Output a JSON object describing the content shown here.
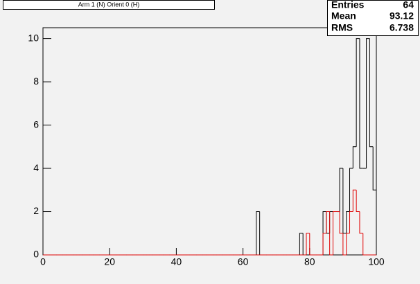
{
  "chart_data": {
    "type": "histogram",
    "title": "Arm 1 (N) Orient 0 (H)",
    "bins": [
      0,
      1,
      2,
      3,
      4,
      5,
      6,
      7,
      8,
      9,
      10,
      11,
      12,
      13,
      14,
      15,
      16,
      17,
      18,
      19,
      20,
      21,
      22,
      23,
      24,
      25,
      26,
      27,
      28,
      29,
      30,
      31,
      32,
      33,
      34,
      35,
      36,
      37,
      38,
      39,
      40,
      41,
      42,
      43,
      44,
      45,
      46,
      47,
      48,
      49,
      50,
      51,
      52,
      53,
      54,
      55,
      56,
      57,
      58,
      59,
      60,
      61,
      62,
      63,
      64,
      65,
      66,
      67,
      68,
      69,
      70,
      71,
      72,
      73,
      74,
      75,
      76,
      77,
      78,
      79,
      80,
      81,
      82,
      83,
      84,
      85,
      86,
      87,
      88,
      89,
      90,
      91,
      92,
      93,
      94,
      95,
      96,
      97,
      98,
      99,
      100
    ],
    "series": [
      {
        "color": "#000000",
        "values": [
          0,
          0,
          0,
          0,
          0,
          0,
          0,
          0,
          0,
          0,
          0,
          0,
          0,
          0,
          0,
          0,
          0,
          0,
          0,
          0,
          0,
          0,
          0,
          0,
          0,
          0,
          0,
          0,
          0,
          0,
          0,
          0,
          0,
          0,
          0,
          0,
          0,
          0,
          0,
          0,
          0,
          0,
          0,
          0,
          0,
          0,
          0,
          0,
          0,
          0,
          0,
          0,
          0,
          0,
          0,
          0,
          0,
          0,
          0,
          0,
          0,
          0,
          0,
          0,
          2,
          0,
          0,
          0,
          0,
          0,
          0,
          0,
          0,
          0,
          0,
          0,
          0,
          1,
          0,
          0,
          0,
          0,
          0,
          0,
          2,
          1,
          2,
          2,
          2,
          4,
          1,
          2,
          4,
          5,
          10,
          4,
          4,
          10,
          5,
          3
        ]
      },
      {
        "color": "#e00000",
        "values": [
          0,
          0,
          0,
          0,
          0,
          0,
          0,
          0,
          0,
          0,
          0,
          0,
          0,
          0,
          0,
          0,
          0,
          0,
          0,
          0,
          0,
          0,
          0,
          0,
          0,
          0,
          0,
          0,
          0,
          0,
          0,
          0,
          0,
          0,
          0,
          0,
          0,
          0,
          0,
          0,
          0,
          0,
          0,
          0,
          0,
          0,
          0,
          0,
          0,
          0,
          0,
          0,
          0,
          0,
          0,
          0,
          0,
          0,
          0,
          0,
          0,
          0,
          0,
          0,
          0,
          0,
          0,
          0,
          0,
          0,
          0,
          0,
          0,
          0,
          0,
          0,
          0,
          0,
          0,
          1,
          0,
          0,
          0,
          0,
          1,
          2,
          0,
          2,
          2,
          1,
          0,
          1,
          2,
          3,
          2,
          1,
          0,
          0,
          0,
          0
        ]
      }
    ],
    "xlim": [
      0,
      100
    ],
    "xticks": [
      0,
      20,
      40,
      60,
      80,
      100
    ],
    "ylim": [
      0,
      10.5
    ],
    "yticks": [
      0,
      2,
      4,
      6,
      8,
      10
    ],
    "stats": {
      "labels": [
        "Entries",
        "Mean",
        "RMS"
      ],
      "values": [
        "64",
        "93.12",
        "6.738"
      ]
    }
  }
}
